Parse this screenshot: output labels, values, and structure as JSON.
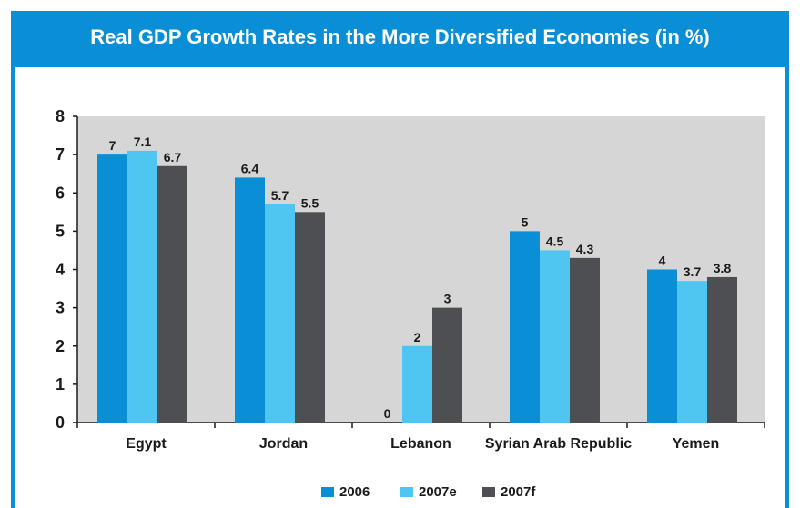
{
  "chart_data": {
    "type": "bar",
    "title": "Real GDP Growth Rates in the More Diversified Economies (in %)",
    "categories": [
      "Egypt",
      "Jordan",
      "Lebanon",
      "Syrian Arab Republic",
      "Yemen"
    ],
    "series": [
      {
        "name": "2006",
        "values": [
          7,
          6.4,
          0,
          5,
          4
        ],
        "color": "#0a8fd6"
      },
      {
        "name": "2007e",
        "values": [
          7.1,
          5.7,
          2,
          4.5,
          3.7
        ],
        "color": "#4fc6f2"
      },
      {
        "name": "2007f",
        "values": [
          6.7,
          5.5,
          3,
          4.3,
          3.8
        ],
        "color": "#4d4f52"
      }
    ],
    "ylim": [
      0,
      8
    ],
    "yticks": [
      0,
      1,
      2,
      3,
      4,
      5,
      6,
      7,
      8
    ],
    "grid": false,
    "legend": "bottom",
    "plot_background": "#d6d6d6"
  }
}
